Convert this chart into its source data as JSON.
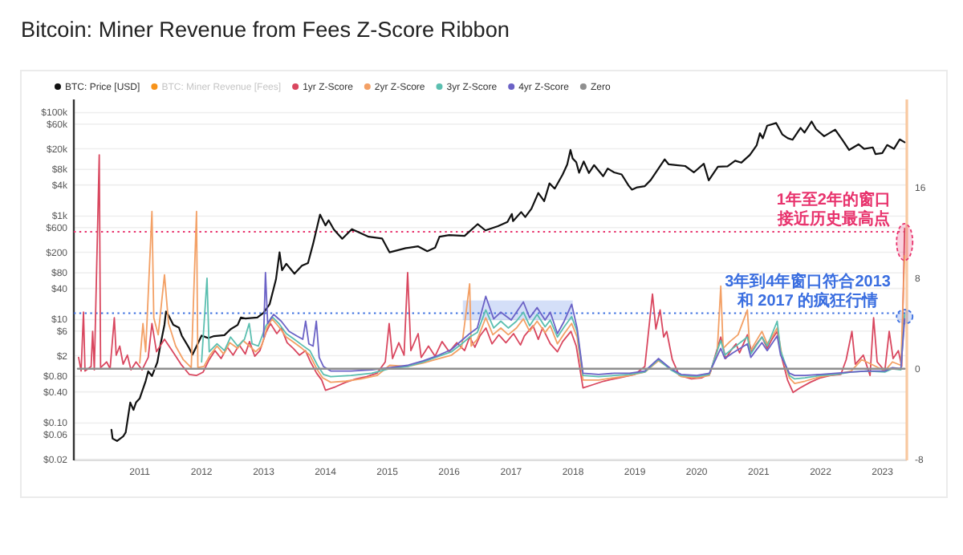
{
  "chart_data": {
    "type": "line",
    "title": "Bitcoin: Miner Revenue from Fees Z-Score Ribbon",
    "xlim": [
      "2009-12-08",
      "2023-05-25"
    ],
    "xticks": [
      "2011",
      "2012",
      "2013",
      "2014",
      "2015",
      "2016",
      "2017",
      "2018",
      "2019",
      "2020",
      "2021",
      "2022",
      "2023"
    ],
    "log": "y",
    "ylim": [
      0.019,
      180000
    ],
    "yticks": [
      {
        "value": 100000,
        "label": "$100k"
      },
      {
        "value": 60000,
        "label": "$60k"
      },
      {
        "value": 20000,
        "label": "$20k"
      },
      {
        "value": 8000,
        "label": "$8k"
      },
      {
        "value": 4000,
        "label": "$4k"
      },
      {
        "value": 1000,
        "label": "$1k"
      },
      {
        "value": 600,
        "label": "$600"
      },
      {
        "value": 200,
        "label": "$200"
      },
      {
        "value": 80,
        "label": "$80"
      },
      {
        "value": 40,
        "label": "$40"
      },
      {
        "value": 10,
        "label": "$10"
      },
      {
        "value": 6,
        "label": "$6"
      },
      {
        "value": 2,
        "label": "$2"
      },
      {
        "value": 0.8,
        "label": "$0.80"
      },
      {
        "value": 0.4,
        "label": "$0.40"
      },
      {
        "value": 0.1,
        "label": "$0.10"
      },
      {
        "value": 0.06,
        "label": "$0.06"
      },
      {
        "value": 0.02,
        "label": "$0.02"
      }
    ],
    "y2lim": [
      -8.1,
      23.8
    ],
    "y2ticks": [
      16,
      8,
      0,
      -8
    ],
    "grid": "y",
    "legend": "top",
    "series": [
      {
        "name": "BTC: Price [USD]",
        "color": "#111111",
        "x": [
          "2010-07-18",
          "2010-07-25",
          "2010-08-20",
          "2010-09-25",
          "2010-10-10",
          "2010-11-06",
          "2010-11-25",
          "2010-12-10",
          "2011-01-01",
          "2011-02-05",
          "2011-02-20",
          "2011-03-14",
          "2011-04-15",
          "2011-05-01",
          "2011-05-27",
          "2011-06-05",
          "2011-06-20",
          "2011-07-18",
          "2011-08-20",
          "2011-09-06",
          "2011-10-20",
          "2011-11-08",
          "2011-12-01",
          "2012-01-01",
          "2012-02-10",
          "2012-03-15",
          "2012-05-15",
          "2012-06-20",
          "2012-08-01",
          "2012-08-20",
          "2012-09-15",
          "2012-11-25",
          "2012-12-31",
          "2013-02-06",
          "2013-03-15",
          "2013-04-05",
          "2013-04-20",
          "2013-05-15",
          "2013-07-02",
          "2013-08-15",
          "2013-09-20",
          "2013-10-20",
          "2013-11-30",
          "2014-01-01",
          "2014-01-20",
          "2014-02-20",
          "2014-04-10",
          "2014-06-06",
          "2014-09-13",
          "2014-12-01",
          "2015-01-14",
          "2015-04-20",
          "2015-07-02",
          "2015-08-25",
          "2015-10-10",
          "2015-11-05",
          "2016-01-01",
          "2016-04-01",
          "2016-06-17",
          "2016-08-02",
          "2016-10-15",
          "2016-12-10",
          "2017-01-05",
          "2017-01-12",
          "2017-03-01",
          "2017-03-25",
          "2017-05-01",
          "2017-06-10",
          "2017-07-15",
          "2017-08-15",
          "2017-09-15",
          "2017-11-01",
          "2017-11-28",
          "2017-12-17",
          "2017-12-30",
          "2018-01-20",
          "2018-02-06",
          "2018-03-05",
          "2018-04-05",
          "2018-05-05",
          "2018-06-28",
          "2018-07-25",
          "2018-09-01",
          "2018-10-15",
          "2018-11-25",
          "2018-12-15",
          "2019-01-15",
          "2019-03-01",
          "2019-04-05",
          "2019-06-26",
          "2019-07-20",
          "2019-09-01",
          "2019-10-25",
          "2019-12-15",
          "2020-02-12",
          "2020-03-12",
          "2020-05-05",
          "2020-07-01",
          "2020-08-15",
          "2020-09-20",
          "2020-11-10",
          "2020-12-20",
          "2021-01-08",
          "2021-01-25",
          "2021-02-20",
          "2021-04-14",
          "2021-05-20",
          "2021-06-22",
          "2021-07-20",
          "2021-09-05",
          "2021-09-28",
          "2021-11-09",
          "2021-12-05",
          "2022-01-22",
          "2022-03-28",
          "2022-05-12",
          "2022-06-18",
          "2022-08-13",
          "2022-09-15",
          "2022-11-05",
          "2022-11-21",
          "2022-12-31",
          "2023-01-29",
          "2023-03-10",
          "2023-04-13",
          "2023-05-12"
        ],
        "values": [
          0.074,
          0.05,
          0.045,
          0.055,
          0.066,
          0.25,
          0.18,
          0.25,
          0.3,
          0.65,
          1.0,
          0.81,
          1.5,
          3.0,
          8,
          14.4,
          12,
          7.9,
          7,
          4.9,
          2.8,
          2.1,
          3,
          4.9,
          4.4,
          4.8,
          5,
          6.5,
          7.9,
          11,
          10.5,
          11,
          13.5,
          20,
          60,
          200,
          90,
          120,
          77,
          110,
          124,
          290,
          1070,
          660,
          830,
          550,
          365,
          560,
          400,
          370,
          200,
          240,
          260,
          210,
          245,
          400,
          430,
          415,
          700,
          530,
          640,
          770,
          1100,
          800,
          1200,
          960,
          1400,
          2800,
          1950,
          4300,
          3400,
          6400,
          10000,
          19000,
          13000,
          11000,
          6900,
          11400,
          6800,
          9700,
          5900,
          8300,
          7000,
          6400,
          3900,
          3250,
          3600,
          3800,
          5000,
          12500,
          10000,
          9700,
          9300,
          7000,
          10300,
          4900,
          9000,
          9200,
          11800,
          10800,
          15300,
          23500,
          40000,
          32000,
          56000,
          63000,
          38000,
          32000,
          30000,
          51000,
          41000,
          67500,
          48000,
          35000,
          47000,
          29000,
          19000,
          24400,
          20000,
          21300,
          15800,
          16500,
          23700,
          20000,
          30400,
          26800
        ]
      },
      {
        "name": "BTC: Miner Revenue [Fees]",
        "color": "#f7931a",
        "axis": "y2"
      },
      {
        "name": "1yr Z-Score",
        "color": "#d9475f",
        "axis": "y2",
        "x": [
          "2010-01-05",
          "2010-01-20",
          "2010-02-03",
          "2010-02-12",
          "2010-03-20",
          "2010-03-29",
          "2010-04-08",
          "2010-05-07",
          "2010-05-15",
          "2010-06-20",
          "2010-07-10",
          "2010-08-04",
          "2010-08-15",
          "2010-09-05",
          "2010-09-25",
          "2010-10-20",
          "2010-11-10",
          "2010-12-10",
          "2011-01-15",
          "2011-02-20",
          "2011-03-14",
          "2011-04-10",
          "2011-05-27",
          "2011-07-15",
          "2011-09-01",
          "2011-10-20",
          "2011-12-01",
          "2012-01-10",
          "2012-02-15",
          "2012-03-20",
          "2012-04-25",
          "2012-06-01",
          "2012-07-05",
          "2012-08-10",
          "2012-09-15",
          "2012-10-10",
          "2012-11-10",
          "2012-12-10",
          "2013-01-15",
          "2013-02-10",
          "2013-03-20",
          "2013-04-15",
          "2013-05-20",
          "2013-06-25",
          "2013-08-01",
          "2013-09-05",
          "2013-10-05",
          "2013-11-10",
          "2013-12-10",
          "2014-01-01",
          "2014-03-01",
          "2014-05-01",
          "2014-07-01",
          "2014-09-01",
          "2014-11-01",
          "2014-12-20",
          "2015-01-12",
          "2015-02-01",
          "2015-03-10",
          "2015-04-10",
          "2015-05-01",
          "2015-05-20",
          "2015-07-02",
          "2015-07-20",
          "2015-09-01",
          "2015-10-10",
          "2015-11-20",
          "2016-01-01",
          "2016-02-15",
          "2016-04-01",
          "2016-05-01",
          "2016-06-01",
          "2016-07-01",
          "2016-08-05",
          "2016-09-10",
          "2016-10-20",
          "2016-12-01",
          "2017-01-15",
          "2017-02-25",
          "2017-03-20",
          "2017-05-10",
          "2017-06-10",
          "2017-07-05",
          "2017-08-20",
          "2017-10-01",
          "2017-11-01",
          "2017-12-20",
          "2018-01-20",
          "2018-03-01",
          "2018-05-01",
          "2018-07-01",
          "2018-10-01",
          "2019-01-01",
          "2019-03-01",
          "2019-04-15",
          "2019-05-05",
          "2019-05-30",
          "2019-06-20",
          "2019-07-08",
          "2019-08-10",
          "2019-09-20",
          "2019-12-01",
          "2020-02-01",
          "2020-03-20",
          "2020-04-20",
          "2020-05-22",
          "2020-06-20",
          "2020-07-20",
          "2020-08-20",
          "2020-09-10",
          "2020-10-26",
          "2020-11-20",
          "2020-12-20",
          "2021-01-20",
          "2021-02-20",
          "2021-03-20",
          "2021-04-20",
          "2021-05-20",
          "2021-06-20",
          "2021-07-23",
          "2021-09-01",
          "2021-11-01",
          "2022-01-01",
          "2022-03-01",
          "2022-05-01",
          "2022-06-01",
          "2022-07-05",
          "2022-07-25",
          "2022-09-10",
          "2022-10-20",
          "2022-11-10",
          "2022-12-01",
          "2023-01-15",
          "2023-02-10",
          "2023-03-05",
          "2023-04-05",
          "2023-04-25",
          "2023-05-12"
        ],
        "values": [
          1.0,
          -0.2,
          5.0,
          -0.2,
          0.2,
          3.3,
          -0.1,
          18.9,
          0.1,
          0.6,
          0.0,
          4.5,
          1.2,
          2.0,
          0.4,
          1.2,
          -0.1,
          0.6,
          -0.1,
          1.0,
          4.0,
          1.5,
          2.6,
          1.5,
          0.4,
          -0.5,
          -0.6,
          -0.3,
          0.8,
          1.6,
          0.9,
          1.9,
          1.2,
          2.1,
          1.3,
          2.4,
          1.1,
          1.6,
          3.2,
          4.0,
          3.1,
          3.6,
          2.3,
          1.8,
          1.2,
          1.6,
          0.6,
          -0.4,
          -1.0,
          -1.9,
          -1.6,
          -1.2,
          -0.9,
          -0.7,
          -0.4,
          0.6,
          4.0,
          0.9,
          2.3,
          1.2,
          8.5,
          1.6,
          3.1,
          1.0,
          2.0,
          1.1,
          2.4,
          1.5,
          2.3,
          1.6,
          2.8,
          1.9,
          2.9,
          3.6,
          2.2,
          3.0,
          2.3,
          3.1,
          2.1,
          2.9,
          3.8,
          2.6,
          3.6,
          2.2,
          1.5,
          2.4,
          3.3,
          2.0,
          -1.7,
          -1.4,
          -1.1,
          -0.8,
          -0.5,
          0.2,
          6.6,
          3.5,
          5.2,
          2.8,
          3.3,
          0.8,
          -0.6,
          -0.9,
          -0.8,
          -0.4,
          1.2,
          2.8,
          0.9,
          1.6,
          2.2,
          1.4,
          3.0,
          1.5,
          2.2,
          2.8,
          1.8,
          2.6,
          3.3,
          0.8,
          -1.0,
          -2.1,
          -1.7,
          -1.2,
          -0.8,
          -0.6,
          -0.5,
          0.8,
          3.3,
          0.4,
          1.2,
          -0.6,
          4.5,
          0.6,
          -0.2,
          3.3,
          0.9,
          1.6,
          0.2,
          12.4
        ]
      },
      {
        "name": "2yr Z-Score",
        "color": "#f3a065",
        "axis": "y2",
        "x": [
          "2011-01-01",
          "2011-01-20",
          "2011-02-05",
          "2011-03-14",
          "2011-03-25",
          "2011-04-20",
          "2011-05-27",
          "2011-06-20",
          "2011-08-01",
          "2011-09-15",
          "2011-11-01",
          "2011-12-02",
          "2011-12-10",
          "2012-01-15",
          "2012-02-20",
          "2012-04-01",
          "2012-05-10",
          "2012-06-15",
          "2012-08-01",
          "2012-09-01",
          "2012-10-10",
          "2012-11-15",
          "2012-12-20",
          "2013-01-20",
          "2013-02-20",
          "2013-04-01",
          "2013-05-15",
          "2013-07-01",
          "2013-08-15",
          "2013-10-01",
          "2013-11-10",
          "2013-12-15",
          "2014-02-01",
          "2014-05-01",
          "2014-08-01",
          "2014-11-01",
          "2015-01-15",
          "2015-05-01",
          "2015-08-01",
          "2015-11-01",
          "2016-01-15",
          "2016-03-15",
          "2016-05-01",
          "2016-05-10",
          "2016-06-15",
          "2016-08-04",
          "2016-09-15",
          "2016-11-01",
          "2016-12-15",
          "2017-02-01",
          "2017-03-14",
          "2017-04-20",
          "2017-06-03",
          "2017-07-20",
          "2017-08-20",
          "2017-10-01",
          "2017-11-10",
          "2017-12-24",
          "2018-01-25",
          "2018-03-01",
          "2018-06-01",
          "2018-09-01",
          "2018-12-01",
          "2019-03-01",
          "2019-05-20",
          "2019-08-01",
          "2019-10-01",
          "2020-01-01",
          "2020-03-15",
          "2020-05-01",
          "2020-05-22",
          "2020-06-05",
          "2020-07-15",
          "2020-09-01",
          "2020-10-26",
          "2020-11-10",
          "2020-12-15",
          "2021-01-20",
          "2021-02-20",
          "2021-04-01",
          "2021-04-20",
          "2021-05-20",
          "2021-07-01",
          "2021-08-01",
          "2021-10-01",
          "2022-01-01",
          "2022-04-01",
          "2022-07-01",
          "2022-09-01",
          "2022-11-10",
          "2023-01-15",
          "2023-03-01",
          "2023-04-20",
          "2023-05-12"
        ],
        "values": [
          0.5,
          4.0,
          1.5,
          13.9,
          4.5,
          3.0,
          8.3,
          4.0,
          2.0,
          0.8,
          0.1,
          13.9,
          0.1,
          0.2,
          1.2,
          2.0,
          1.3,
          2.3,
          1.8,
          2.5,
          2.0,
          1.5,
          2.0,
          3.6,
          4.4,
          3.7,
          2.8,
          2.3,
          1.8,
          1.2,
          0.0,
          -0.8,
          -1.2,
          -1.1,
          -0.9,
          -0.6,
          0.3,
          0.2,
          0.5,
          0.9,
          1.2,
          1.9,
          7.5,
          2.0,
          2.6,
          4.5,
          3.0,
          3.6,
          3.0,
          3.6,
          4.4,
          3.3,
          4.2,
          3.2,
          3.8,
          2.2,
          3.1,
          4.0,
          2.8,
          -1.0,
          -1.0,
          -0.8,
          -0.6,
          -0.3,
          0.7,
          0.0,
          -0.7,
          -0.8,
          -0.6,
          1.5,
          7.3,
          1.8,
          2.4,
          3.0,
          5.2,
          1.5,
          2.4,
          3.3,
          2.2,
          3.1,
          3.6,
          1.0,
          -0.8,
          -1.3,
          -1.1,
          -0.7,
          -0.5,
          -0.2,
          0.8,
          0.3,
          -0.2,
          0.6,
          0.3,
          10.0
        ]
      },
      {
        "name": "3yr Z-Score",
        "color": "#5bbfb0",
        "axis": "y2",
        "x": [
          "2012-01-01",
          "2012-02-02",
          "2012-02-15",
          "2012-04-01",
          "2012-05-15",
          "2012-06-20",
          "2012-08-01",
          "2012-09-10",
          "2012-10-08",
          "2012-10-25",
          "2012-12-01",
          "2013-01-15",
          "2013-02-20",
          "2013-04-01",
          "2013-05-15",
          "2013-07-01",
          "2013-08-15",
          "2013-10-01",
          "2013-11-15",
          "2013-12-20",
          "2014-02-01",
          "2014-06-01",
          "2014-10-01",
          "2015-01-15",
          "2015-05-01",
          "2015-08-01",
          "2015-11-01",
          "2016-01-15",
          "2016-03-15",
          "2016-05-01",
          "2016-06-15",
          "2016-08-04",
          "2016-09-20",
          "2016-11-01",
          "2016-12-15",
          "2017-02-01",
          "2017-03-14",
          "2017-04-20",
          "2017-06-03",
          "2017-07-20",
          "2017-08-20",
          "2017-10-01",
          "2017-11-10",
          "2017-12-24",
          "2018-01-25",
          "2018-03-01",
          "2018-06-01",
          "2018-09-01",
          "2018-12-01",
          "2019-03-01",
          "2019-05-20",
          "2019-08-01",
          "2019-10-01",
          "2020-01-01",
          "2020-03-15",
          "2020-05-22",
          "2020-06-15",
          "2020-08-01",
          "2020-10-26",
          "2020-11-15",
          "2020-12-15",
          "2021-01-20",
          "2021-02-20",
          "2021-04-20",
          "2021-05-10",
          "2021-07-01",
          "2021-08-01",
          "2021-10-01",
          "2022-01-01",
          "2022-04-01",
          "2022-07-01",
          "2022-10-01",
          "2023-01-15",
          "2023-03-01",
          "2023-04-20",
          "2023-05-12"
        ],
        "values": [
          0.6,
          8.0,
          1.5,
          2.2,
          1.6,
          2.8,
          2.0,
          2.6,
          4.0,
          2.2,
          2.0,
          3.8,
          4.6,
          4.0,
          3.1,
          2.6,
          2.1,
          1.6,
          0.3,
          -0.5,
          -0.7,
          -0.6,
          -0.4,
          0.0,
          0.2,
          0.6,
          1.1,
          1.5,
          2.2,
          2.8,
          3.2,
          5.2,
          3.6,
          4.2,
          3.6,
          4.2,
          5.0,
          3.8,
          4.8,
          3.7,
          4.3,
          2.8,
          3.7,
          4.6,
          3.3,
          -0.6,
          -0.7,
          -0.6,
          -0.5,
          -0.3,
          0.8,
          -0.1,
          -0.6,
          -0.7,
          -0.5,
          2.5,
          1.2,
          1.8,
          2.8,
          1.3,
          2.0,
          2.8,
          2.0,
          4.2,
          1.6,
          -0.6,
          -0.9,
          -0.8,
          -0.6,
          -0.5,
          -0.3,
          -0.2,
          -0.3,
          0.0,
          -0.1,
          4.8
        ]
      },
      {
        "name": "4yr Z-Score",
        "color": "#6b62c6",
        "axis": "y2",
        "x": [
          "2013-01-01",
          "2013-01-12",
          "2013-01-25",
          "2013-03-01",
          "2013-04-15",
          "2013-06-01",
          "2013-07-15",
          "2013-08-20",
          "2013-09-06",
          "2013-09-25",
          "2013-10-20",
          "2013-11-08",
          "2013-11-25",
          "2013-12-20",
          "2014-02-01",
          "2014-06-01",
          "2014-10-01",
          "2015-01-15",
          "2015-05-01",
          "2015-08-01",
          "2015-11-01",
          "2016-01-15",
          "2016-03-15",
          "2016-05-01",
          "2016-06-15",
          "2016-08-04",
          "2016-09-20",
          "2016-11-01",
          "2017-01-01",
          "2017-03-14",
          "2017-04-20",
          "2017-06-03",
          "2017-07-20",
          "2017-08-20",
          "2017-10-01",
          "2017-11-10",
          "2017-12-24",
          "2018-01-25",
          "2018-03-01",
          "2018-06-01",
          "2018-09-01",
          "2018-12-01",
          "2019-03-01",
          "2019-05-20",
          "2019-08-01",
          "2019-10-01",
          "2020-01-01",
          "2020-03-15",
          "2020-05-22",
          "2020-06-15",
          "2020-08-01",
          "2020-10-26",
          "2020-11-15",
          "2020-12-15",
          "2021-01-20",
          "2021-02-20",
          "2021-04-20",
          "2021-05-10",
          "2021-07-01",
          "2021-08-01",
          "2021-10-01",
          "2022-01-01",
          "2022-04-01",
          "2022-07-01",
          "2022-10-01",
          "2023-01-15",
          "2023-03-01",
          "2023-04-20",
          "2023-05-12"
        ],
        "values": [
          2.8,
          8.5,
          4.0,
          4.8,
          4.2,
          3.3,
          2.9,
          2.6,
          4.2,
          2.2,
          2.0,
          4.2,
          1.0,
          0.2,
          -0.2,
          -0.2,
          -0.1,
          0.1,
          0.3,
          0.7,
          1.2,
          1.7,
          2.5,
          3.1,
          3.6,
          6.4,
          4.4,
          5.0,
          4.3,
          5.9,
          4.5,
          5.4,
          4.3,
          5.0,
          3.1,
          4.2,
          5.7,
          3.6,
          -0.4,
          -0.5,
          -0.4,
          -0.4,
          -0.2,
          0.9,
          0.0,
          -0.5,
          -0.6,
          -0.4,
          1.8,
          0.9,
          1.4,
          2.2,
          1.0,
          1.6,
          2.3,
          1.6,
          2.9,
          1.2,
          -0.4,
          -0.6,
          -0.6,
          -0.5,
          -0.4,
          -0.3,
          -0.2,
          -0.2,
          0.1,
          0.0,
          4.4
        ]
      },
      {
        "name": "Zero",
        "color": "#8f8f8f",
        "axis": "y2",
        "x": [
          "2010-01-01",
          "2023-05-12"
        ],
        "values": [
          0,
          0
        ]
      }
    ],
    "ref_lines": [
      {
        "axis": "y2",
        "value": 12.1,
        "label": "1年至2年的窗口接近历史最高点",
        "color": "#e8336d",
        "line_style": "dotted"
      },
      {
        "axis": "y2",
        "value": 4.9,
        "label": "3年到4年窗口符合2013 和 2017 的疯狂行情",
        "color": "#3a6ee0",
        "line_style": "dotted"
      }
    ]
  }
}
